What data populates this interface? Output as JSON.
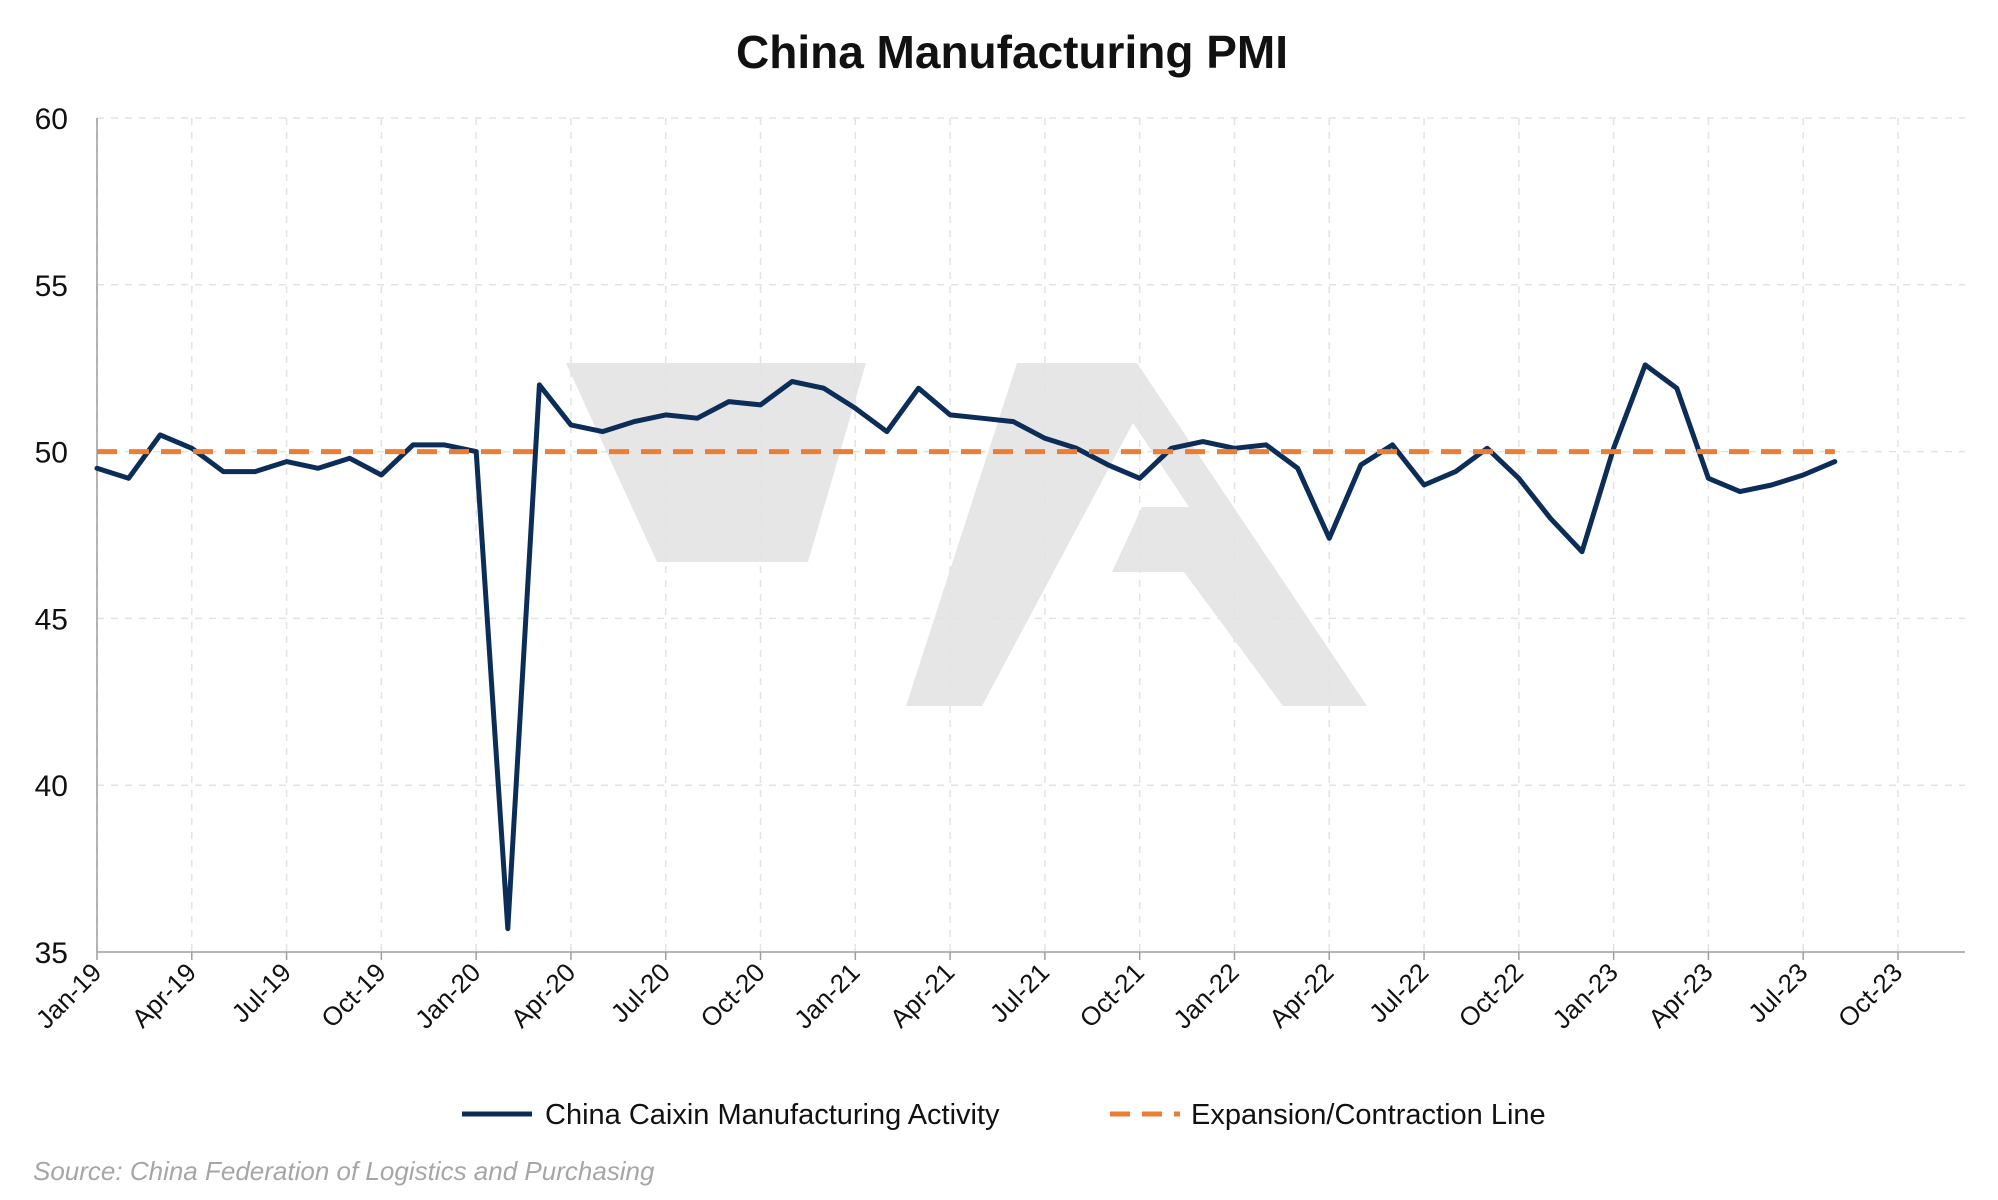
{
  "source_note": "Source: China Federation of Logistics and Purchasing",
  "colors": {
    "series_line": "#0c2d57",
    "threshold_line": "#ed7d31",
    "watermark": "#e6e6e6",
    "grid": "#e3e3e3"
  },
  "chart_data": {
    "type": "line",
    "title": "China Manufacturing PMI",
    "xlabel": "",
    "ylabel": "",
    "ylim": [
      35,
      60
    ],
    "yticks": [
      35,
      40,
      45,
      50,
      55,
      60
    ],
    "x_range": [
      "Jan-19",
      "Oct-23"
    ],
    "xticks": [
      "Jan-19",
      "Apr-19",
      "Jul-19",
      "Oct-19",
      "Jan-20",
      "Apr-20",
      "Jul-20",
      "Oct-20",
      "Jan-21",
      "Apr-21",
      "Jul-21",
      "Oct-21",
      "Jan-22",
      "Apr-22",
      "Jul-22",
      "Oct-22",
      "Jan-23",
      "Apr-23",
      "Jul-23",
      "Oct-23"
    ],
    "grid": true,
    "legend_position": "bottom",
    "series": [
      {
        "name": "China Caixin Manufacturing Activity",
        "style": "solid",
        "start": "Jan-19",
        "values": [
          49.5,
          49.2,
          50.5,
          50.1,
          49.4,
          49.4,
          49.7,
          49.5,
          49.8,
          49.3,
          50.2,
          50.2,
          50.0,
          35.7,
          52.0,
          50.8,
          50.6,
          50.9,
          51.1,
          51.0,
          51.5,
          51.4,
          52.1,
          51.9,
          51.3,
          50.6,
          51.9,
          51.1,
          51.0,
          50.9,
          50.4,
          50.1,
          49.6,
          49.2,
          50.1,
          50.3,
          50.1,
          50.2,
          49.5,
          47.4,
          49.6,
          50.2,
          49.0,
          49.4,
          50.1,
          49.2,
          48.0,
          47.0,
          50.1,
          52.6,
          51.9,
          49.2,
          48.8,
          49.0,
          49.3,
          49.7
        ]
      },
      {
        "name": "Expansion/Contraction Line",
        "style": "dashed",
        "start": "Jan-19",
        "values": [
          50,
          50,
          50,
          50,
          50,
          50,
          50,
          50,
          50,
          50,
          50,
          50,
          50,
          50,
          50,
          50,
          50,
          50,
          50,
          50,
          50,
          50,
          50,
          50,
          50,
          50,
          50,
          50,
          50,
          50,
          50,
          50,
          50,
          50,
          50,
          50,
          50,
          50,
          50,
          50,
          50,
          50,
          50,
          50,
          50,
          50,
          50,
          50,
          50,
          50,
          50,
          50,
          50,
          50,
          50,
          50
        ]
      }
    ]
  }
}
